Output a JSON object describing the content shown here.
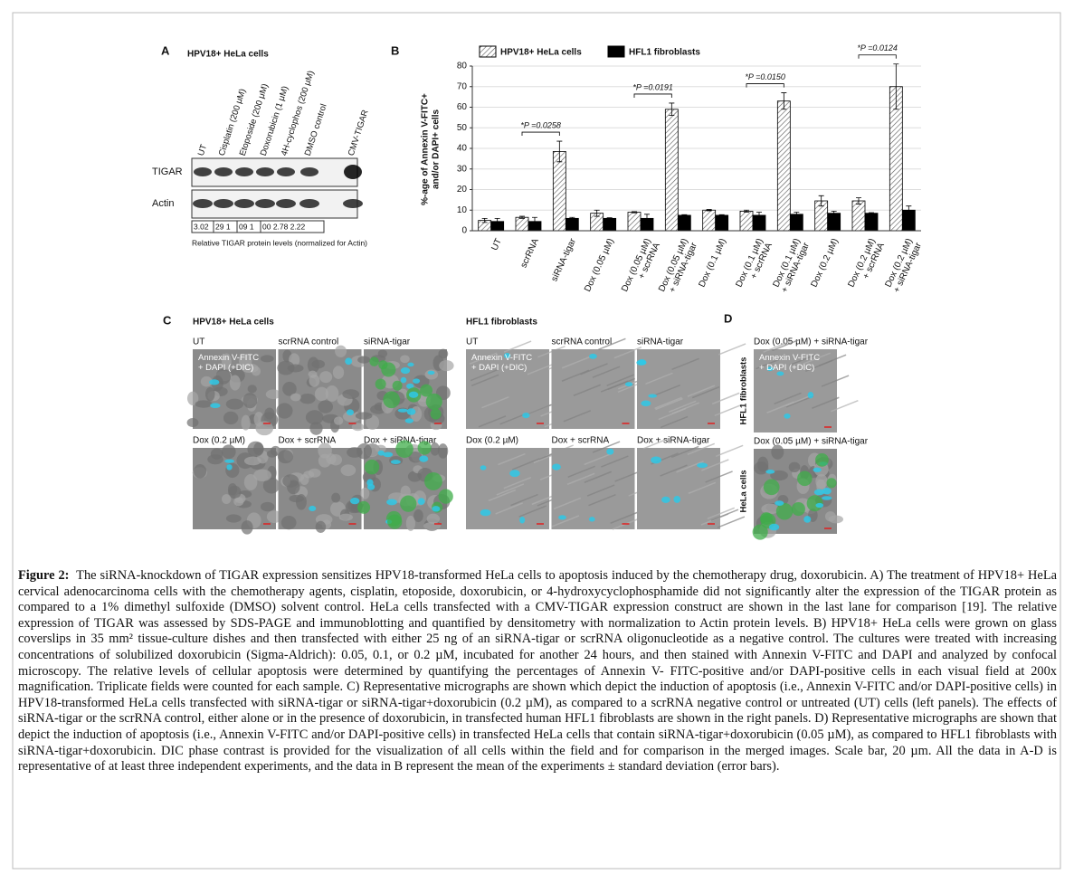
{
  "panel_a": {
    "letter": "A",
    "title": "HPV18+ HeLa cells",
    "lanes": [
      "UT",
      "Cisplatin (200 μM)",
      "Etoposide (200 μM)",
      "Doxorubicin (1 μM)",
      "4H-cyclophos (200 μM)",
      "DMSO control",
      "CMV-TIGAR"
    ],
    "rows": [
      "TIGAR",
      "Actin"
    ],
    "levels": [
      "3.02",
      "29 1",
      "09 1",
      "00 2.78 2.22"
    ],
    "note": "Relative TIGAR protein levels (normalized for Actin)"
  },
  "chart_data": {
    "type": "bar",
    "letter": "B",
    "ylabel": [
      "%-age of Annexin V-FITC+",
      "and/or DAPI+ cells"
    ],
    "categories": [
      "UT",
      "scrRNA",
      "siRNA-tigar",
      "Dox (0.05 µM)",
      "Dox (0.05 µM)\n+ scrRNA",
      "Dox (0.05 µM)\n+ siRNA-tigar",
      "Dox (0.1 µM)",
      "Dox (0.1 µM)\n+ scrRNA",
      "Dox (0.1 µM)\n+ siRNA-tigar",
      "Dox (0.2 µM)",
      "Dox (0.2 µM)\n+ scrRNA",
      "Dox (0.2 µM)\n+ siRNA-tigar"
    ],
    "series": [
      {
        "name": "HPV18+ HeLa cells",
        "color": "#ffffff",
        "pattern": "hatch",
        "values": [
          5,
          6.5,
          38.5,
          8.5,
          9,
          59,
          10,
          9.5,
          63,
          14.5,
          14.5,
          70
        ],
        "errors": [
          1,
          0.5,
          5,
          1.5,
          0.3,
          3,
          0.3,
          0.5,
          4,
          2.5,
          1.5,
          11
        ]
      },
      {
        "name": "HFL1 fibroblasts",
        "color": "#000000",
        "values": [
          4.5,
          4.5,
          6,
          6,
          6,
          7.5,
          7.5,
          7.5,
          8,
          8.5,
          8.5,
          10
        ],
        "errors": [
          1.5,
          2,
          0.5,
          0.3,
          2,
          0.3,
          0.3,
          1.5,
          1,
          1,
          0.3,
          2
        ]
      }
    ],
    "ylim": [
      0,
      80
    ],
    "yticks": [
      0,
      10,
      20,
      30,
      40,
      50,
      60,
      70,
      80
    ],
    "grid": true,
    "legend": "top",
    "annotations": [
      "*P =0.0258",
      "*P =0.0191",
      "*P =0.0150",
      "*P =0.0124"
    ]
  },
  "panel_c": {
    "letter": "C",
    "overlay": "Annexin V-FITC\n+ DAPI (+DIC)",
    "groups": [
      {
        "title": "HPV18+ HeLa cells",
        "labels": [
          "UT",
          "scrRNA control",
          "siRNA-tigar",
          "Dox (0.2 µM)",
          "Dox + scrRNA",
          "Dox + siRNA-tigar"
        ]
      },
      {
        "title": "HFL1 fibroblasts",
        "labels": [
          "UT",
          "scrRNA control",
          "siRNA-tigar",
          "Dox (0.2 µM)",
          "Dox + scrRNA",
          "Dox + siRNA-tigar"
        ]
      }
    ]
  },
  "panel_d": {
    "letter": "D",
    "labels": [
      "Dox (0.05 µM) + siRNA-tigar",
      "Dox (0.05 µM) + siRNA-tigar"
    ],
    "rows": [
      "HFL1 fibroblasts",
      "HeLa cells"
    ]
  },
  "caption": {
    "label": "Figure 2:",
    "text": "The siRNA-knockdown of TIGAR expression sensitizes HPV18-transformed HeLa cells to apoptosis induced by the chemotherapy drug, doxorubicin. A) The treatment of HPV18+ HeLa cervical adenocarcinoma cells with the chemotherapy agents, cisplatin, etoposide, doxorubicin, or 4-hydroxycyclophosphamide did not significantly alter the expression of the TIGAR protein as compared to a 1% dimethyl sulfoxide (DMSO) solvent control. HeLa cells transfected with a CMV-TIGAR expression construct are shown in the last lane for comparison [19]. The relative expression of TIGAR was assessed by SDS-PAGE and immunoblotting and quantified by densitometry with normalization to Actin protein levels. B) HPV18+ HeLa cells were grown on glass coverslips in 35 mm² tissue-culture dishes and then transfected with either 25 ng of an siRNA-tigar or scrRNA oligonucleotide as a negative control. The cultures were treated with increasing concentrations of solubilized doxorubicin (Sigma-Aldrich): 0.05, 0.1, or 0.2 µM, incubated for another 24 hours, and then stained with Annexin V-FITC and DAPI and analyzed by confocal microscopy. The relative levels of cellular apoptosis were determined by quantifying the percentages of Annexin V- FITC-positive and/or DAPI-positive cells in each visual field at 200x magnification. Triplicate fields were counted for each sample. C) Representative micrographs are shown which depict the induction of apoptosis (i.e., Annexin V-FITC and/or DAPI-positive cells) in HPV18-transformed HeLa cells transfected with siRNA-tigar or siRNA-tigar+doxorubicin (0.2 µM), as compared to a scrRNA negative control or untreated (UT) cells (left panels). The effects of siRNA-tigar or the scrRNA control, either alone or in the presence of doxorubicin, in transfected human HFL1 fibroblasts are shown in the right panels. D) Representative micrographs are shown that depict the induction of apoptosis (i.e., Annexin V-FITC and/or DAPI-positive cells) in transfected HeLa cells that contain siRNA-tigar+doxorubicin (0.05 µM), as compared to HFL1 fibroblasts with siRNA-tigar+doxorubicin. DIC phase contrast is provided for the visualization of all cells within the field and for comparison in the merged images. Scale bar, 20 µm. All the data in A-D is representative of at least three independent experiments, and the data in B represent the mean of the experiments ± standard deviation (error bars)."
  }
}
